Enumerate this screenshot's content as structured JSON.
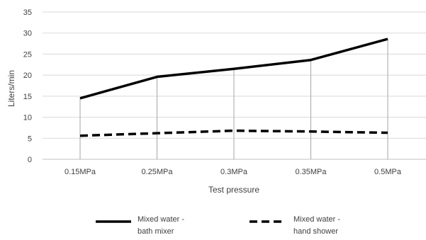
{
  "chart_data": {
    "type": "line",
    "categories": [
      "0.15MPa",
      "0.25MPa",
      "0.3MPa",
      "0.35MPa",
      "0.5MPa"
    ],
    "series": [
      {
        "name": "Mixed water - bath mixer",
        "values": [
          14.5,
          19.6,
          21.5,
          23.6,
          28.6
        ],
        "color": "#000000",
        "dash": "solid"
      },
      {
        "name": "Mixed water - hand shower",
        "values": [
          5.6,
          6.2,
          6.8,
          6.6,
          6.3
        ],
        "color": "#000000",
        "dash": "dashed"
      }
    ],
    "title": "",
    "xlabel": "Test pressure",
    "ylabel": "Liters/min",
    "ylim": [
      0,
      35
    ],
    "yticks": [
      0,
      5,
      10,
      15,
      20,
      25,
      30,
      35
    ],
    "grid": {
      "horizontal": true,
      "vertical_drop_lines": true,
      "color": "#d9d9d9",
      "drop_line_color": "#a6a6a6"
    },
    "legend": {
      "placement": "bottom",
      "entries": [
        {
          "line1": "Mixed water -",
          "line2": "bath mixer"
        },
        {
          "line1": "Mixed water -",
          "line2": "hand shower"
        }
      ]
    }
  }
}
